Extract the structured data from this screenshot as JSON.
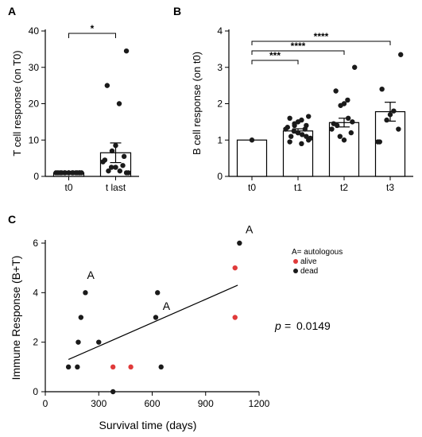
{
  "colors": {
    "dark": "#1a1a1a",
    "alive": "#e03a3a",
    "axis": "#000000"
  },
  "panels": [
    {
      "id": "A",
      "letter": "A"
    },
    {
      "id": "B",
      "letter": "B"
    },
    {
      "id": "C",
      "letter": "C"
    }
  ],
  "chart_data": [
    {
      "panel": "A",
      "type": "bar",
      "ylabel": "T cell response (on T0)",
      "ylim": [
        0,
        40
      ],
      "yticks": [
        0,
        10,
        20,
        30,
        40
      ],
      "categories": [
        "t0",
        "t last"
      ],
      "values": [
        1,
        6.5
      ],
      "sem": [
        0,
        2.7
      ],
      "points": [
        [
          1,
          1,
          1,
          1,
          1,
          1,
          1,
          1,
          1,
          1,
          1,
          1,
          1,
          1,
          1
        ],
        [
          34.5,
          25,
          20,
          8.5,
          7,
          5.5,
          4.5,
          4,
          3,
          2.5,
          2.5,
          1.5,
          1.5,
          1,
          1
        ]
      ],
      "significance": [
        {
          "from": 0,
          "to": 1,
          "label": "*"
        }
      ]
    },
    {
      "panel": "B",
      "type": "bar",
      "ylabel": "B cell response (on t0)",
      "ylim": [
        0,
        4
      ],
      "yticks": [
        0,
        1,
        2,
        3,
        4
      ],
      "categories": [
        "t0",
        "t1",
        "t2",
        "t3"
      ],
      "values": [
        1.0,
        1.25,
        1.48,
        1.78
      ],
      "sem": [
        0,
        0.06,
        0.12,
        0.26
      ],
      "points": [
        [
          1.0
        ],
        [
          1.65,
          1.6,
          1.55,
          1.5,
          1.45,
          1.4,
          1.35,
          1.3,
          1.3,
          1.25,
          1.2,
          1.15,
          1.1,
          1.05,
          1.0,
          0.95,
          0.9,
          1.2,
          1.4,
          1.1
        ],
        [
          3.0,
          2.35,
          2.1,
          2.0,
          1.95,
          1.5,
          1.45,
          1.3,
          1.2,
          1.1,
          1.0,
          1.6,
          1.4
        ],
        [
          3.35,
          2.4,
          1.8,
          1.7,
          1.55,
          1.3,
          0.95,
          0.95
        ]
      ],
      "significance": [
        {
          "from": 0,
          "to": 3,
          "label": "****"
        },
        {
          "from": 0,
          "to": 2,
          "label": "****"
        },
        {
          "from": 0,
          "to": 1,
          "label": "***"
        }
      ]
    },
    {
      "panel": "C",
      "type": "scatter",
      "xlabel": "Survival time (days)",
      "ylabel": "Immune Response (B+T)",
      "xlim": [
        0,
        1200
      ],
      "ylim": [
        0,
        6
      ],
      "xticks": [
        0,
        300,
        600,
        900,
        1200
      ],
      "yticks": [
        0,
        2,
        4,
        6
      ],
      "series": [
        {
          "name": "alive",
          "color": "#e03a3a",
          "x": [
            380,
            480,
            1065,
            1065
          ],
          "y": [
            1,
            1,
            5,
            3
          ]
        },
        {
          "name": "dead",
          "color": "#1a1a1a",
          "x": [
            130,
            180,
            185,
            200,
            225,
            300,
            380,
            620,
            630,
            650,
            1090
          ],
          "y": [
            1,
            1,
            2,
            3,
            4,
            2,
            0,
            3,
            4,
            1,
            6
          ]
        }
      ],
      "trendline": {
        "x": [
          130,
          1080
        ],
        "y": [
          1.3,
          4.3
        ]
      },
      "annotations": [
        {
          "text": "A",
          "x": 255,
          "y": 4.55
        },
        {
          "text": "A",
          "x": 680,
          "y": 3.3
        },
        {
          "text": "A",
          "x": 1145,
          "y": 6.4
        }
      ],
      "legend": {
        "title": "A= autologous",
        "items": [
          {
            "label": "alive",
            "color": "#e03a3a"
          },
          {
            "label": "dead",
            "color": "#1a1a1a"
          }
        ]
      },
      "pvalue": {
        "symbol": "p",
        "eq": "=",
        "value": "0.0149"
      }
    }
  ]
}
